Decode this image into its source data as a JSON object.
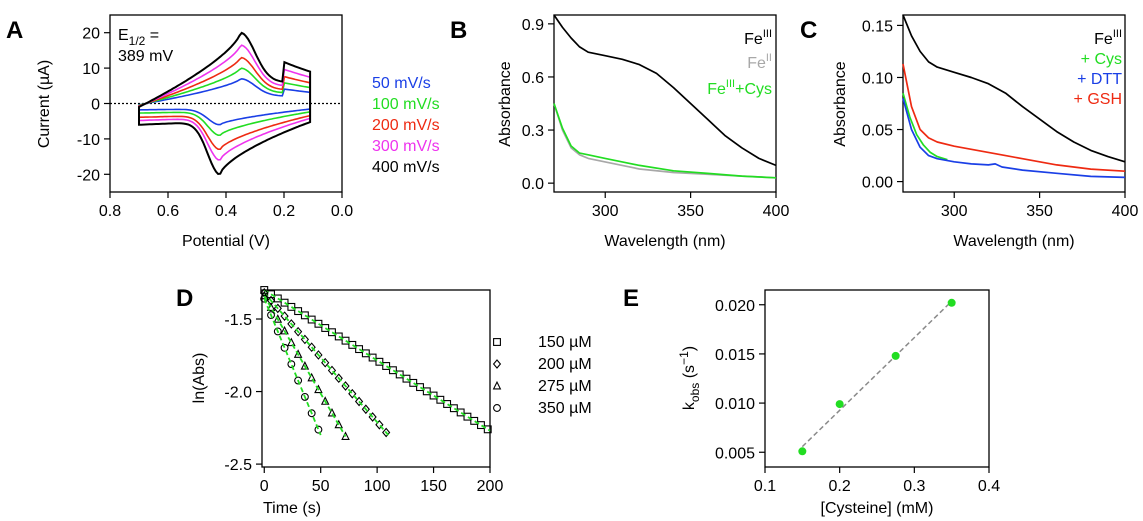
{
  "panels": {
    "A": {
      "letter": "A"
    },
    "B": {
      "letter": "B"
    },
    "C": {
      "letter": "C"
    },
    "D": {
      "letter": "D"
    },
    "E": {
      "letter": "E"
    }
  },
  "colors": {
    "black": "#000000",
    "blue": "#1a3fe6",
    "green": "#22dd22",
    "red": "#ee2a12",
    "magenta": "#ee33ee",
    "gray": "#a8a8a8",
    "dashed": "#8a8a8a"
  },
  "chart_data": [
    {
      "panel": "A",
      "type": "line",
      "xlabel": "Potential (V)",
      "ylabel": "Current (µA)",
      "xlim": [
        0.8,
        0.0
      ],
      "ylim": [
        -25,
        25
      ],
      "xticks": [
        "0.8",
        "0.6",
        "0.4",
        "0.2",
        "0.0"
      ],
      "yticks": [
        "20",
        "10",
        "0",
        "-10",
        "-20"
      ],
      "reference_line_y": 0,
      "annotation": {
        "line1": "E",
        "sub": "1/2",
        "line1_rest": " =",
        "line2": "389 mV"
      },
      "cv_shape": {
        "e_start": 0.7,
        "e_switch": 0.11,
        "cathodic_peak_potential": 0.42,
        "anodic_peak_potential": 0.35
      },
      "series": [
        {
          "name": "50 mV/s",
          "color": "#1a3fe6",
          "cathodic_peak": -6,
          "anodic_peak": 7
        },
        {
          "name": "100 mV/s",
          "color": "#22dd22",
          "cathodic_peak": -9,
          "anodic_peak": 10
        },
        {
          "name": "200 mV/s",
          "color": "#ee2a12",
          "cathodic_peak": -13,
          "anodic_peak": 13
        },
        {
          "name": "300 mV/s",
          "color": "#ee33ee",
          "cathodic_peak": -16,
          "anodic_peak": 16.5
        },
        {
          "name": "400 mV/s",
          "color": "#000000",
          "cathodic_peak": -20,
          "anodic_peak": 20
        }
      ]
    },
    {
      "panel": "B",
      "type": "line",
      "xlabel": "Wavelength (nm)",
      "ylabel": "Absorbance",
      "xlim": [
        270,
        400
      ],
      "ylim": [
        -0.05,
        0.95
      ],
      "xticks": [
        "300",
        "350",
        "400"
      ],
      "yticks": [
        "0.9",
        "0.6",
        "0.3",
        "0.0"
      ],
      "series": [
        {
          "name": "Fe",
          "sup": "III",
          "color": "#000000",
          "x": [
            270,
            275,
            280,
            285,
            290,
            300,
            310,
            320,
            330,
            340,
            350,
            360,
            370,
            380,
            390,
            400
          ],
          "y": [
            0.95,
            0.88,
            0.82,
            0.77,
            0.74,
            0.72,
            0.7,
            0.67,
            0.62,
            0.54,
            0.45,
            0.36,
            0.27,
            0.2,
            0.14,
            0.1
          ]
        },
        {
          "name": "Fe",
          "sup": "II",
          "color": "#a8a8a8",
          "x": [
            270,
            275,
            280,
            285,
            290,
            300,
            310,
            320,
            340,
            360,
            380,
            400
          ],
          "y": [
            0.45,
            0.3,
            0.2,
            0.16,
            0.14,
            0.12,
            0.1,
            0.08,
            0.06,
            0.05,
            0.04,
            0.03
          ]
        },
        {
          "name": "Fe",
          "sup": "III",
          "name_suffix": "+Cys",
          "color": "#22dd22",
          "x": [
            270,
            275,
            280,
            285,
            290,
            300,
            310,
            320,
            340,
            360,
            380,
            400
          ],
          "y": [
            0.45,
            0.31,
            0.21,
            0.17,
            0.16,
            0.14,
            0.12,
            0.1,
            0.07,
            0.055,
            0.04,
            0.03
          ]
        }
      ]
    },
    {
      "panel": "C",
      "type": "line",
      "xlabel": "Wavelength (nm)",
      "ylabel": "Absorbance",
      "xlim": [
        270,
        400
      ],
      "ylim": [
        -0.01,
        0.16
      ],
      "xticks": [
        "300",
        "350",
        "400"
      ],
      "yticks": [
        "0.15",
        "0.10",
        "0.05",
        "0.00"
      ],
      "series": [
        {
          "name": "Fe",
          "sup": "III",
          "color": "#000000",
          "x": [
            270,
            275,
            280,
            285,
            290,
            300,
            310,
            320,
            330,
            340,
            350,
            360,
            370,
            380,
            390,
            400
          ],
          "y": [
            0.16,
            0.14,
            0.125,
            0.115,
            0.11,
            0.105,
            0.1,
            0.094,
            0.085,
            0.072,
            0.06,
            0.048,
            0.038,
            0.03,
            0.024,
            0.019
          ]
        },
        {
          "name": "+ Cys",
          "color": "#22dd22",
          "x": [
            270,
            274,
            278,
            282,
            286,
            290,
            296
          ],
          "y": [
            0.085,
            0.062,
            0.045,
            0.035,
            0.028,
            0.024,
            0.021
          ]
        },
        {
          "name": "+ DTT",
          "color": "#1a3fe6",
          "x": [
            270,
            275,
            280,
            285,
            290,
            300,
            310,
            320,
            324,
            328,
            340,
            360,
            380,
            400
          ],
          "y": [
            0.08,
            0.05,
            0.033,
            0.025,
            0.022,
            0.019,
            0.017,
            0.016,
            0.017,
            0.014,
            0.011,
            0.008,
            0.005,
            0.004
          ]
        },
        {
          "name": "+ GSH",
          "color": "#ee2a12",
          "x": [
            270,
            275,
            280,
            285,
            290,
            300,
            310,
            320,
            330,
            340,
            350,
            360,
            380,
            400
          ],
          "y": [
            0.113,
            0.072,
            0.05,
            0.042,
            0.038,
            0.034,
            0.031,
            0.028,
            0.025,
            0.022,
            0.019,
            0.016,
            0.012,
            0.01
          ]
        }
      ]
    },
    {
      "panel": "D",
      "type": "scatter",
      "xlabel": "Time (s)",
      "ylabel": "ln(Abs)",
      "xlim": [
        -2,
        200
      ],
      "ylim": [
        -2.52,
        -1.3
      ],
      "xticks": [
        "0",
        "50",
        "100",
        "150",
        "200"
      ],
      "yticks": [
        "-1.5",
        "-2.0",
        "-2.5"
      ],
      "fit_color": "#22dd22",
      "series": [
        {
          "name": "150 µM",
          "marker": "square",
          "intercept": -1.3,
          "x_end": 200,
          "dx": 6,
          "y_end": -2.27
        },
        {
          "name": "200 µM",
          "marker": "diamond",
          "intercept": -1.32,
          "x_end": 110,
          "dx": 6,
          "y_end": -2.3
        },
        {
          "name": "275 µM",
          "marker": "triangle",
          "intercept": -1.34,
          "x_end": 72,
          "dx": 6,
          "y_end": -2.31
        },
        {
          "name": "350 µM",
          "marker": "circle",
          "intercept": -1.36,
          "x_end": 50,
          "dx": 6,
          "y_end": -2.3
        }
      ]
    },
    {
      "panel": "E",
      "type": "scatter",
      "xlabel": "[Cysteine] (mM)",
      "ylabel": "k",
      "ylabel_sub": "obs",
      "ylabel_rest": " (s",
      "ylabel_sup": "−1",
      "ylabel_end": ")",
      "xlim": [
        0.1,
        0.4
      ],
      "ylim": [
        0.0035,
        0.0215
      ],
      "xticks": [
        "0.1",
        "0.2",
        "0.3",
        "0.4"
      ],
      "yticks": [
        "0.020",
        "0.015",
        "0.010",
        "0.005"
      ],
      "x": [
        0.15,
        0.2,
        0.275,
        0.35
      ],
      "y": [
        0.0051,
        0.0099,
        0.0148,
        0.0202
      ],
      "point_color": "#22dd22",
      "fit_color": "#8a8a8a"
    }
  ]
}
